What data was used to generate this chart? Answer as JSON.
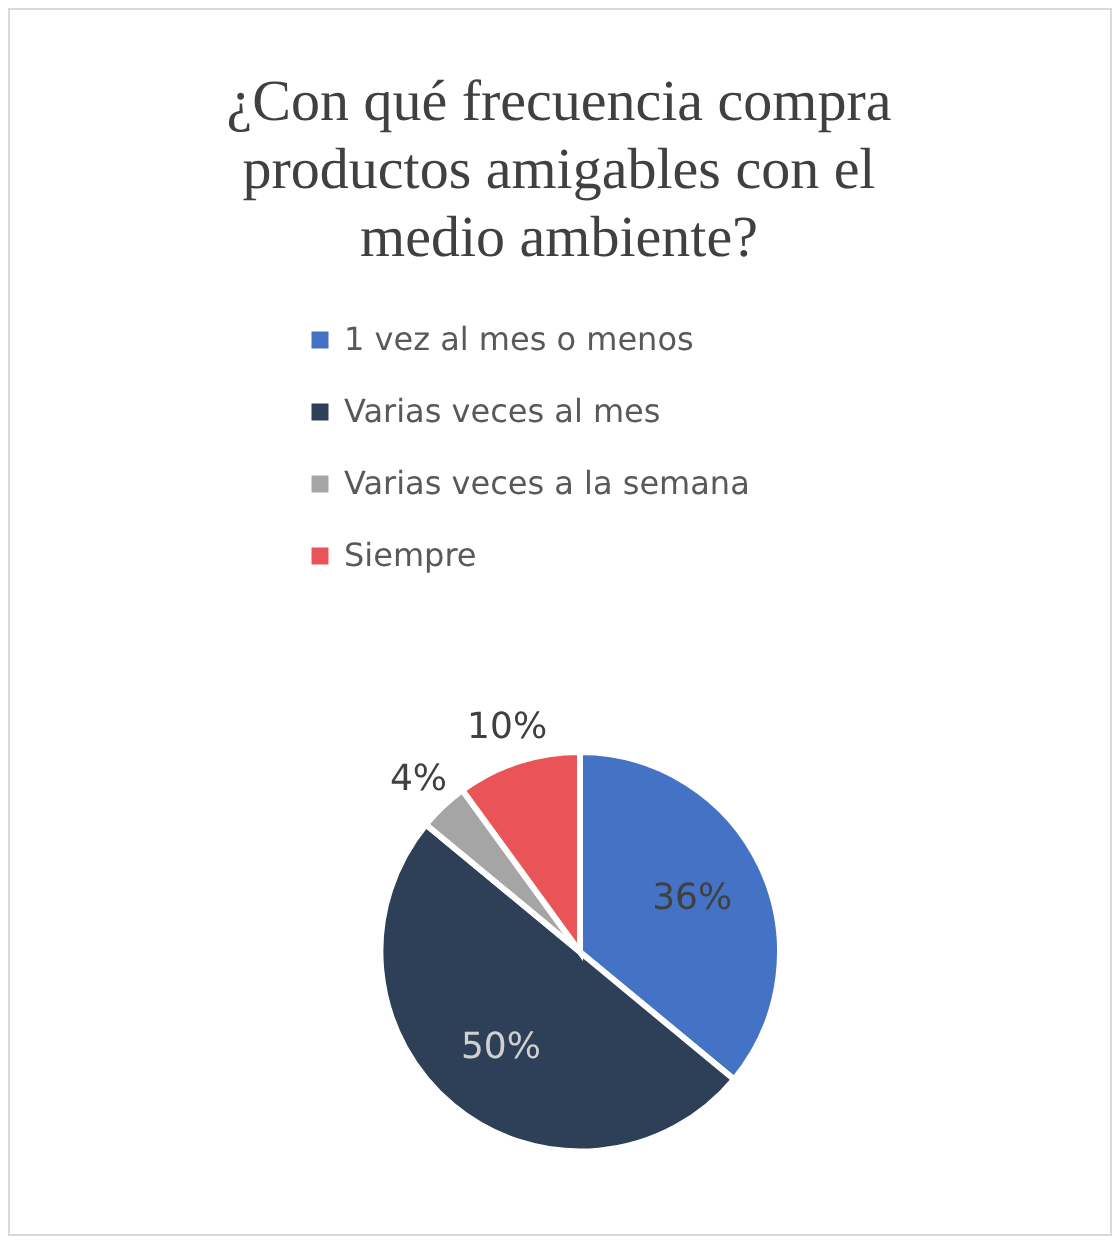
{
  "chart_data": {
    "type": "pie",
    "title": "¿Con qué frecuencia compra productos amigables con el medio ambiente?",
    "categories": [
      "1 vez al mes o menos",
      "Varias veces al mes",
      "Varias veces a la semana",
      "Siempre"
    ],
    "values": [
      36,
      50,
      4,
      10
    ],
    "colors": [
      "#4472c4",
      "#2e3f58",
      "#a5a5a5",
      "#e85457"
    ],
    "value_labels": [
      "36%",
      "50%",
      "4%",
      "10%"
    ],
    "legend": "top"
  }
}
